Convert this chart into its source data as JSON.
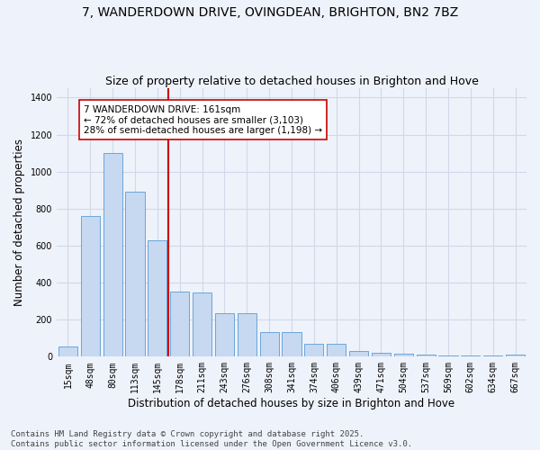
{
  "title_line1": "7, WANDERDOWN DRIVE, OVINGDEAN, BRIGHTON, BN2 7BZ",
  "title_line2": "Size of property relative to detached houses in Brighton and Hove",
  "xlabel": "Distribution of detached houses by size in Brighton and Hove",
  "ylabel": "Number of detached properties",
  "categories": [
    "15sqm",
    "48sqm",
    "80sqm",
    "113sqm",
    "145sqm",
    "178sqm",
    "211sqm",
    "243sqm",
    "276sqm",
    "308sqm",
    "341sqm",
    "374sqm",
    "406sqm",
    "439sqm",
    "471sqm",
    "504sqm",
    "537sqm",
    "569sqm",
    "602sqm",
    "634sqm",
    "667sqm"
  ],
  "values": [
    55,
    760,
    1100,
    890,
    630,
    350,
    345,
    235,
    235,
    135,
    135,
    70,
    70,
    30,
    20,
    15,
    10,
    5,
    5,
    5,
    10
  ],
  "bar_color": "#c6d9f1",
  "bar_edge_color": "#5b9bd5",
  "vline_x_index": 5,
  "property_line_label": "7 WANDERDOWN DRIVE: 161sqm",
  "annotation_line2": "← 72% of detached houses are smaller (3,103)",
  "annotation_line3": "28% of semi-detached houses are larger (1,198) →",
  "annotation_box_color": "#ffffff",
  "annotation_box_edge_color": "#cc0000",
  "vline_color": "#cc0000",
  "ylim": [
    0,
    1450
  ],
  "yticks": [
    0,
    200,
    400,
    600,
    800,
    1000,
    1200,
    1400
  ],
  "grid_color": "#d0d8e8",
  "bg_color": "#eef2fa",
  "plot_bg_color": "#eef2fa",
  "footnote": "Contains HM Land Registry data © Crown copyright and database right 2025.\nContains public sector information licensed under the Open Government Licence v3.0.",
  "title_fontsize": 10,
  "subtitle_fontsize": 9,
  "label_fontsize": 8.5,
  "tick_fontsize": 7,
  "annotation_fontsize": 7.5,
  "footnote_fontsize": 6.5
}
